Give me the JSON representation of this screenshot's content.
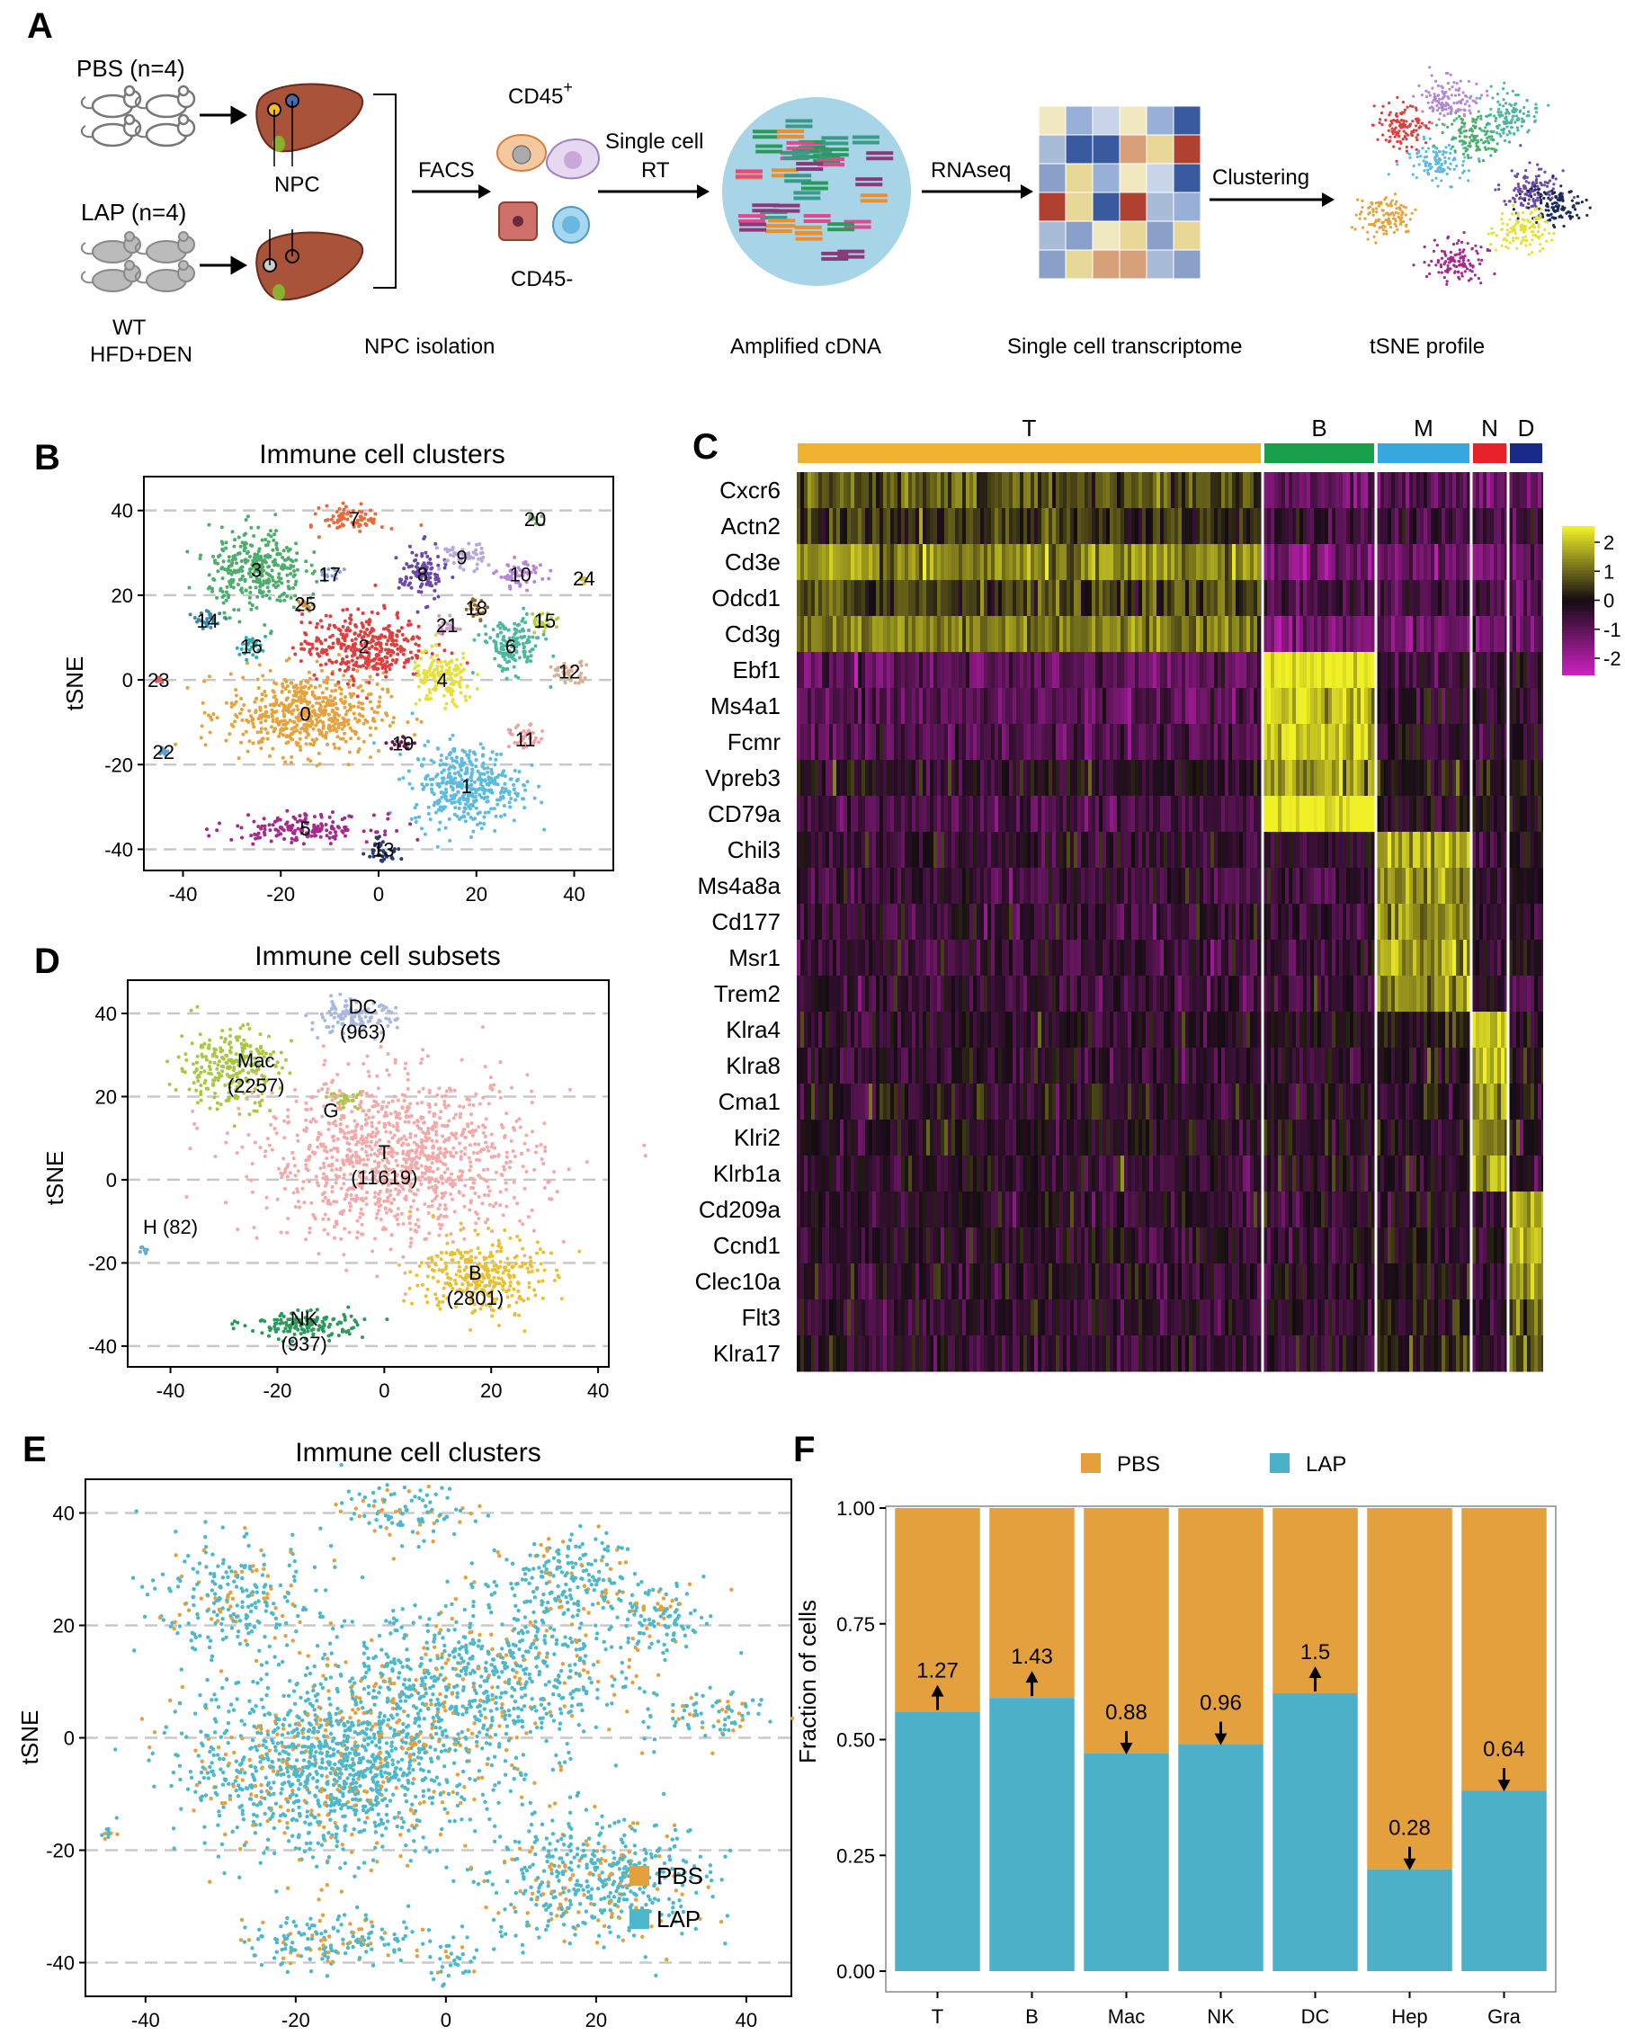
{
  "panel_a": {
    "label": "A",
    "pbs_group": "PBS (n=4)",
    "lap_group": "LAP (n=4)",
    "npc": "NPC",
    "mouse_line1": "WT",
    "mouse_line2": "HFD+DEN",
    "facs": "FACS",
    "cd45_pos": "CD45",
    "cd45_pos_sup": "+",
    "cd45_neg": "CD45-",
    "rt_line1": "Single cell",
    "rt_line2": "RT",
    "rnaseq": "RNAseq",
    "clustering": "Clustering",
    "captions": [
      "NPC isolation",
      "Amplified cDNA",
      "Single cell transcriptome",
      "tSNE profile"
    ]
  },
  "panel_b": {
    "label": "B",
    "title": "Immune cell clusters",
    "ylabel": "tSNE",
    "xticks": [
      "-40",
      "-20",
      "0",
      "20",
      "40"
    ],
    "yticks": [
      "40",
      "20",
      "0",
      "-20",
      "-40"
    ],
    "xlim": [
      -48,
      48
    ],
    "ylim": [
      -45,
      48
    ],
    "clusters": [
      {
        "id": "0",
        "x": -15,
        "y": -8,
        "sx": 10,
        "sy": 6,
        "color": "#e6a23c"
      },
      {
        "id": "1",
        "x": 18,
        "y": -25,
        "sx": 7,
        "sy": 6,
        "color": "#5bbbe0"
      },
      {
        "id": "2",
        "x": -3,
        "y": 8,
        "sx": 8,
        "sy": 5,
        "color": "#e03f3f"
      },
      {
        "id": "3",
        "x": -25,
        "y": 26,
        "sx": 6,
        "sy": 6,
        "color": "#4cae6a"
      },
      {
        "id": "4",
        "x": 13,
        "y": 0,
        "sx": 4,
        "sy": 4,
        "color": "#e8e03a"
      },
      {
        "id": "5",
        "x": -15,
        "y": -35,
        "sx": 9,
        "sy": 2,
        "color": "#a52a8c"
      },
      {
        "id": "6",
        "x": 27,
        "y": 8,
        "sx": 4,
        "sy": 4,
        "color": "#4cb8a0"
      },
      {
        "id": "7",
        "x": -5,
        "y": 38,
        "sx": 4,
        "sy": 2,
        "color": "#e86a3a"
      },
      {
        "id": "8",
        "x": 9,
        "y": 25,
        "sx": 3,
        "sy": 4,
        "color": "#6d4aa8"
      },
      {
        "id": "9",
        "x": 17,
        "y": 29,
        "sx": 3,
        "sy": 2,
        "color": "#b8a8e0"
      },
      {
        "id": "10",
        "x": 29,
        "y": 25,
        "sx": 3,
        "sy": 2,
        "color": "#b888d8"
      },
      {
        "id": "11",
        "x": 30,
        "y": -14,
        "sx": 2,
        "sy": 2,
        "color": "#f4a0a0"
      },
      {
        "id": "12",
        "x": 39,
        "y": 2,
        "sx": 3,
        "sy": 1.5,
        "color": "#d8b090"
      },
      {
        "id": "13",
        "x": 1,
        "y": -40,
        "sx": 2,
        "sy": 2,
        "color": "#2a3a6a"
      },
      {
        "id": "14",
        "x": -35,
        "y": 14,
        "sx": 2,
        "sy": 1.5,
        "color": "#3a8ab0"
      },
      {
        "id": "15",
        "x": 34,
        "y": 14,
        "sx": 2,
        "sy": 1.5,
        "color": "#b8d040"
      },
      {
        "id": "16",
        "x": -26,
        "y": 8,
        "sx": 2,
        "sy": 1.5,
        "color": "#2ab0b0"
      },
      {
        "id": "17",
        "x": -10,
        "y": 25,
        "sx": 1.5,
        "sy": 1,
        "color": "#8aa0d8"
      },
      {
        "id": "18",
        "x": 20,
        "y": 17,
        "sx": 1.5,
        "sy": 1.5,
        "color": "#8a6a2a"
      },
      {
        "id": "19",
        "x": 5,
        "y": -15,
        "sx": 2,
        "sy": 1,
        "color": "#6a1a4a"
      },
      {
        "id": "20",
        "x": 32,
        "y": 38,
        "sx": 1,
        "sy": 1,
        "color": "#7ab070"
      },
      {
        "id": "21",
        "x": 14,
        "y": 13,
        "sx": 1.5,
        "sy": 1.5,
        "color": "#c8a0c8"
      },
      {
        "id": "22",
        "x": -44,
        "y": -17,
        "sx": 0.5,
        "sy": 0.5,
        "color": "#5aa0d0"
      },
      {
        "id": "23",
        "x": -45,
        "y": 0,
        "sx": 0.5,
        "sy": 0.5,
        "color": "#e06060"
      },
      {
        "id": "24",
        "x": 42,
        "y": 24,
        "sx": 0.5,
        "sy": 0.5,
        "color": "#d0c040"
      },
      {
        "id": "25",
        "x": -15,
        "y": 18,
        "sx": 1,
        "sy": 1,
        "color": "#c89040"
      }
    ]
  },
  "panel_c": {
    "label": "C",
    "groups": [
      {
        "name": "T",
        "color": "#f0b030"
      },
      {
        "name": "B",
        "color": "#1aa04a"
      },
      {
        "name": "M",
        "color": "#3aa8e0"
      },
      {
        "name": "N",
        "color": "#e8202a"
      },
      {
        "name": "D",
        "color": "#1a2a8a"
      }
    ],
    "genes": [
      "Cxcr6",
      "Actn2",
      "Cd3e",
      "Odcd1",
      "Cd3g",
      "Ebf1",
      "Ms4a1",
      "Fcmr",
      "Vpreb3",
      "CD79a",
      "Chil3",
      "Ms4a8a",
      "Cd177",
      "Msr1",
      "Trem2",
      "Klra4",
      "Klra8",
      "Cma1",
      "Klri2",
      "Klrb1a",
      "Cd209a",
      "Ccnd1",
      "Clec10a",
      "Flt3",
      "Klra17"
    ],
    "scale_ticks": [
      "2",
      "1",
      "0",
      "-1",
      "-2"
    ],
    "scale_range": [
      -2,
      2
    ],
    "mean_expression": [
      [
        0.6,
        -0.9,
        -0.8,
        -0.9,
        -0.8
      ],
      [
        0.3,
        -0.5,
        -0.5,
        -0.5,
        -0.4
      ],
      [
        1.0,
        -1.2,
        -1.0,
        -1.0,
        -1.0
      ],
      [
        0.5,
        -0.5,
        -0.6,
        -0.6,
        -0.6
      ],
      [
        1.0,
        -1.1,
        -1.0,
        -1.0,
        -1.0
      ],
      [
        -0.8,
        2.0,
        -0.3,
        -0.4,
        -0.3
      ],
      [
        -0.8,
        1.7,
        -0.3,
        -0.3,
        -0.4
      ],
      [
        -0.7,
        1.6,
        -0.3,
        -0.4,
        -0.4
      ],
      [
        -0.2,
        1.3,
        -0.1,
        -0.1,
        -0.1
      ],
      [
        -0.6,
        2.1,
        -0.2,
        -0.3,
        -0.3
      ],
      [
        -0.3,
        -0.3,
        1.3,
        -0.3,
        0.1
      ],
      [
        -0.4,
        -0.4,
        1.2,
        -0.4,
        -0.2
      ],
      [
        -0.4,
        -0.4,
        1.1,
        -0.4,
        -0.3
      ],
      [
        -0.4,
        -0.4,
        1.2,
        -0.4,
        0.0
      ],
      [
        -0.4,
        -0.3,
        1.1,
        -0.4,
        -0.6
      ],
      [
        -0.3,
        -0.2,
        0.0,
        1.6,
        -0.1
      ],
      [
        -0.3,
        -0.2,
        -0.1,
        1.5,
        -0.1
      ],
      [
        -0.2,
        -0.2,
        -0.2,
        1.4,
        -0.1
      ],
      [
        -0.2,
        -0.2,
        -0.2,
        1.1,
        -0.1
      ],
      [
        -0.3,
        -0.2,
        -0.2,
        1.5,
        -0.2
      ],
      [
        -0.3,
        -0.4,
        -0.2,
        -0.4,
        1.4
      ],
      [
        -0.3,
        -0.3,
        -0.1,
        -0.3,
        1.5
      ],
      [
        -0.3,
        -0.3,
        0.1,
        -0.3,
        1.2
      ],
      [
        -0.3,
        -0.3,
        0.0,
        -0.3,
        0.9
      ],
      [
        -0.3,
        -0.3,
        0.2,
        -0.3,
        0.7
      ]
    ]
  },
  "panel_d": {
    "label": "D",
    "title": "Immune cell subsets",
    "ylabel": "tSNE",
    "xticks": [
      "-40",
      "-20",
      "0",
      "20",
      "40"
    ],
    "yticks": [
      "40",
      "20",
      "0",
      "-20",
      "-40"
    ],
    "subsets": [
      {
        "name": "Mac",
        "count": "(2257)",
        "color": "#a8c840"
      },
      {
        "name": "DC",
        "count": "(963)",
        "color": "#a8b8e0"
      },
      {
        "name": "G",
        "count": "",
        "color": "#a8c840"
      },
      {
        "name": "T",
        "count": "(11619)",
        "color": "#f4a8a8"
      },
      {
        "name": "H (82)",
        "count": "",
        "color": "#5ab0d8"
      },
      {
        "name": "B",
        "count": "(2801)",
        "color": "#e8c030"
      },
      {
        "name": "NK",
        "count": "(937)",
        "color": "#2a9a5a"
      }
    ]
  },
  "panel_e": {
    "label": "E",
    "title": "Immune cell clusters",
    "ylabel": "tSNE",
    "xticks": [
      "-40",
      "-20",
      "0",
      "20",
      "40"
    ],
    "yticks": [
      "40",
      "20",
      "0",
      "-20",
      "-40"
    ],
    "legend": [
      {
        "name": "PBS",
        "color": "#e3a03c"
      },
      {
        "name": "LAP",
        "color": "#4cb8cc"
      }
    ]
  },
  "panel_f": {
    "label": "F",
    "ylabel": "Fraction of cells",
    "legend": [
      {
        "name": "PBS",
        "color": "#e3a03c"
      },
      {
        "name": "LAP",
        "color": "#4cb0c8"
      }
    ]
  },
  "chart_data": [
    {
      "type": "bar",
      "title": "",
      "xlabel": "",
      "ylabel": "Fraction of cells",
      "ylim": [
        0,
        1
      ],
      "yticks": [
        "0.00",
        "0.25",
        "0.50",
        "0.75",
        "1.00"
      ],
      "categories": [
        "T",
        "B",
        "Mac",
        "NK",
        "DC",
        "Hep",
        "Gra"
      ],
      "series": [
        {
          "name": "LAP",
          "values": [
            0.56,
            0.59,
            0.47,
            0.49,
            0.6,
            0.22,
            0.39
          ]
        },
        {
          "name": "PBS",
          "values": [
            0.44,
            0.41,
            0.53,
            0.51,
            0.4,
            0.78,
            0.61
          ]
        }
      ],
      "ratio_labels": [
        "1.27",
        "1.43",
        "0.88",
        "0.96",
        "1.5",
        "0.28",
        "0.64"
      ],
      "directions": [
        "up",
        "up",
        "down",
        "down",
        "up",
        "down",
        "down"
      ],
      "stacked": true
    }
  ]
}
